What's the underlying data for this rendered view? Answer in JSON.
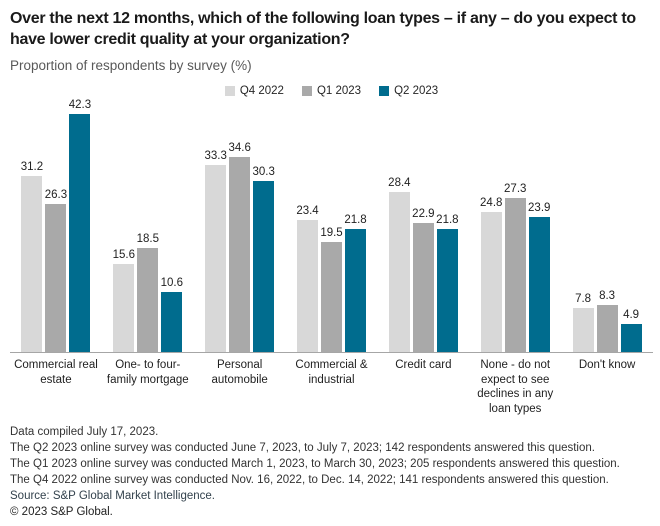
{
  "header": {
    "title": "Over the next 12 months, which of the following loan types – if any – do you expect to have lower credit quality at your organization?",
    "subtitle": "Proportion of respondents by survey (%)"
  },
  "chart_data": {
    "type": "bar",
    "title": "Over the next 12 months, which of the following loan types – if any – do you expect to have lower credit quality at your organization?",
    "subtitle": "Proportion of respondents by survey (%)",
    "categories": [
      "Commercial real estate",
      "One- to four-family mortgage",
      "Personal automobile",
      "Commercial & industrial",
      "Credit card",
      "None - do not expect to see declines in any loan types",
      "Don't know"
    ],
    "series": [
      {
        "name": "Q4 2022",
        "color": "#d8d8d8",
        "values": [
          31.2,
          15.6,
          33.3,
          23.4,
          28.4,
          24.8,
          7.8
        ]
      },
      {
        "name": "Q1 2023",
        "color": "#a9a9a9",
        "values": [
          26.3,
          18.5,
          34.6,
          19.5,
          22.9,
          27.3,
          8.3
        ]
      },
      {
        "name": "Q2 2023",
        "color": "#006c8e",
        "values": [
          42.3,
          10.6,
          30.3,
          21.8,
          21.8,
          23.9,
          4.9
        ]
      }
    ],
    "xlabel": "",
    "ylabel": "Proportion of respondents by survey (%)",
    "ylim": [
      0,
      45
    ],
    "grid": false,
    "legend_position": "top-center",
    "value_labels": "one decimal, above each bar",
    "axis_line_color": "#a6a6a6"
  },
  "footer": {
    "notes": [
      "Data compiled July 17, 2023.",
      "The Q2 2023 online survey was conducted June 7, 2023, to July 7, 2023; 142 respondents answered this question.",
      "The Q1 2023 online survey was conducted March 1, 2023, to March 30, 2023; 205 respondents answered this question.",
      "The Q4 2022 online survey was conducted Nov. 16, 2022, to Dec. 14, 2022; 141 respondents answered this question."
    ],
    "source": "Source: S&P Global Market Intelligence.",
    "copyright": "© 2023 S&P Global."
  }
}
